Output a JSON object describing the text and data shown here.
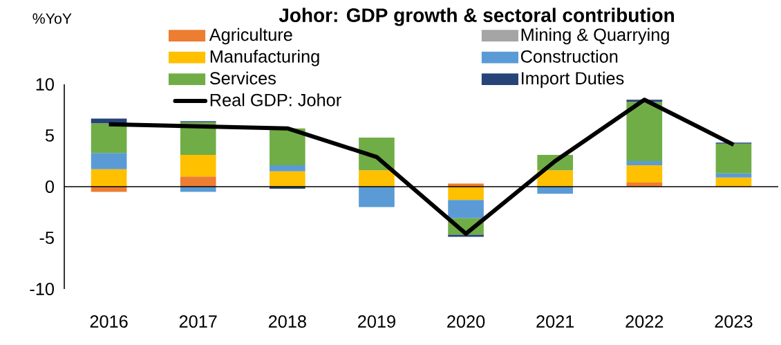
{
  "chart_data": {
    "type": "bar",
    "title": "Johor: GDP growth & sectoral contribution",
    "ylabel": "%YoY",
    "categories": [
      "2016",
      "2017",
      "2018",
      "2019",
      "2020",
      "2021",
      "2022",
      "2023"
    ],
    "stacked": true,
    "legend": "top",
    "ylim": [
      -10,
      10
    ],
    "yticks": [
      -10,
      -5,
      0,
      5,
      10
    ],
    "series": [
      {
        "name": "Agriculture",
        "color": "#ed7d31",
        "values": [
          -0.5,
          1.0,
          0,
          0,
          0.3,
          0,
          0.4,
          null
        ]
      },
      {
        "name": "Mining & Quarrying",
        "color": "#a5a5a5",
        "values": [
          0,
          0,
          null,
          null,
          0,
          0,
          null,
          0
        ]
      },
      {
        "name": "Manufacturing",
        "color": "#ffc000",
        "values": [
          1.7,
          2.1,
          1.5,
          1.6,
          -1.3,
          1.6,
          1.7,
          0.9
        ]
      },
      {
        "name": "Construction",
        "color": "#5b9bd5",
        "values": [
          1.6,
          -0.5,
          0.6,
          -2.0,
          -1.8,
          -0.7,
          0.4,
          0.4
        ]
      },
      {
        "name": "Services",
        "color": "#70ad47",
        "values": [
          2.9,
          3.2,
          3.6,
          3.2,
          -1.6,
          1.5,
          5.8,
          2.9
        ]
      },
      {
        "name": "Import Duties",
        "color": "#264478",
        "values": [
          0.45,
          0.1,
          -0.2,
          0,
          -0.2,
          0,
          0.2,
          0.1
        ]
      },
      {
        "name": "Real GDP: Johor",
        "type": "line",
        "color": "#000000",
        "values": [
          6.1,
          5.9,
          5.7,
          2.9,
          -4.6,
          2.5,
          8.5,
          4.1
        ]
      }
    ]
  }
}
